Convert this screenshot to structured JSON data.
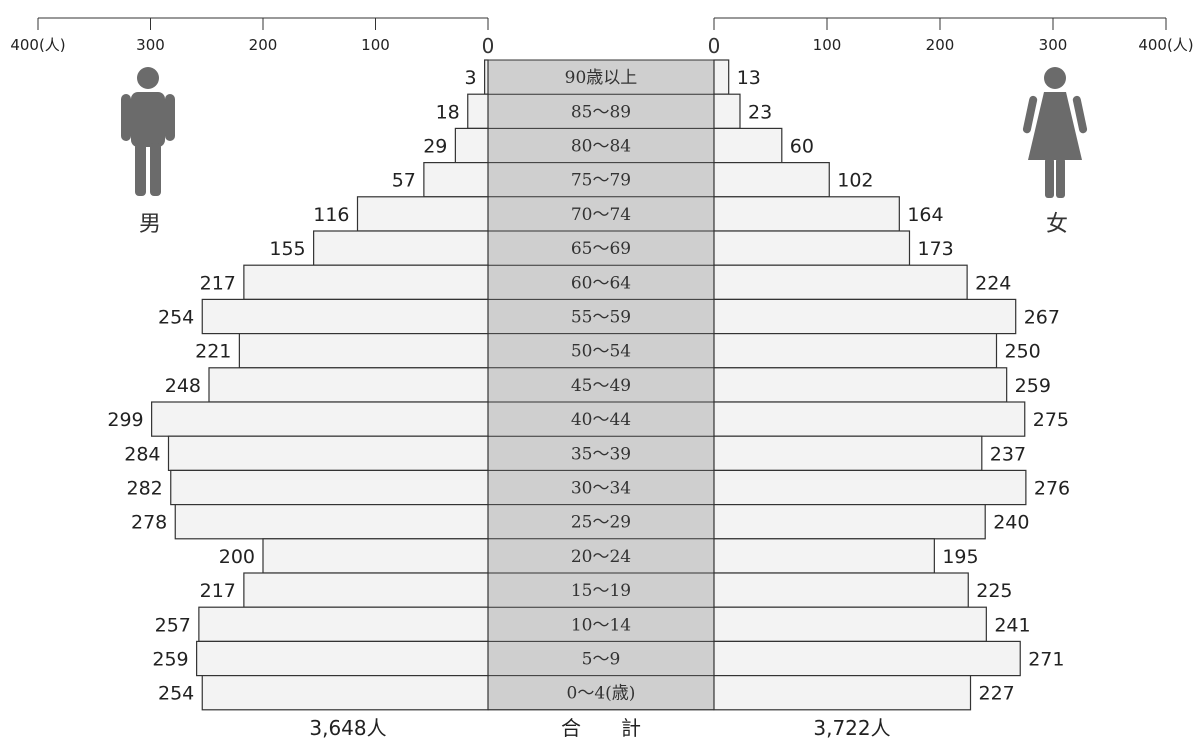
{
  "chart_data": {
    "type": "bar",
    "orientation": "horizontal-population-pyramid",
    "categories": [
      "90歳以上",
      "85～89",
      "80～84",
      "75～79",
      "70～74",
      "65～69",
      "60～64",
      "55～59",
      "50～54",
      "45～49",
      "40～44",
      "35～39",
      "30～34",
      "25～29",
      "20～24",
      "15～19",
      "10～14",
      "5～9",
      "0～4(歳)"
    ],
    "series": [
      {
        "name": "男",
        "side": "left",
        "values": [
          3,
          18,
          29,
          57,
          116,
          155,
          217,
          254,
          221,
          248,
          299,
          284,
          282,
          278,
          200,
          217,
          257,
          259,
          254
        ]
      },
      {
        "name": "女",
        "side": "right",
        "values": [
          13,
          23,
          60,
          102,
          164,
          173,
          224,
          267,
          250,
          259,
          275,
          237,
          276,
          240,
          195,
          225,
          241,
          271,
          227
        ]
      }
    ],
    "left_axis_ticks": [
      "400(人)",
      "300",
      "200",
      "100",
      "0"
    ],
    "right_axis_ticks": [
      "0",
      "100",
      "200",
      "300",
      "400(人)"
    ],
    "xlim": [
      0,
      400
    ],
    "totals": {
      "male": "3,648人",
      "label": "合　　計",
      "female": "3,722人"
    },
    "bar_fill": "#f3f3f3",
    "age_band_fill": "#cfcfcf",
    "icon_color": "#6b6b6b"
  },
  "icons": {
    "male": "male-person-icon",
    "female": "female-person-icon"
  }
}
